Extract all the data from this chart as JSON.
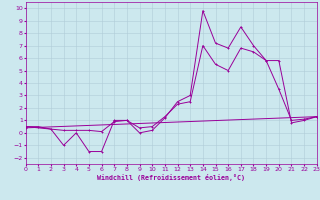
{
  "xlabel": "Windchill (Refroidissement éolien,°C)",
  "bg_color": "#cce8ee",
  "grid_color": "#b0cdd8",
  "line_color": "#990099",
  "xlim": [
    0,
    23
  ],
  "ylim": [
    -2.5,
    10.5
  ],
  "xticks": [
    0,
    1,
    2,
    3,
    4,
    5,
    6,
    7,
    8,
    9,
    10,
    11,
    12,
    13,
    14,
    15,
    16,
    17,
    18,
    19,
    20,
    21,
    22,
    23
  ],
  "yticks": [
    -2,
    -1,
    0,
    1,
    2,
    3,
    4,
    5,
    6,
    7,
    8,
    9,
    10
  ],
  "series1_x": [
    0,
    1,
    2,
    3,
    4,
    5,
    6,
    7,
    8,
    9,
    10,
    11,
    12,
    13,
    14,
    15,
    16,
    17,
    18,
    19,
    20,
    21,
    22,
    23
  ],
  "series1_y": [
    0.5,
    0.5,
    0.3,
    -1.0,
    0.0,
    -1.5,
    -1.5,
    1.0,
    1.0,
    0.0,
    0.2,
    1.2,
    2.5,
    3.0,
    9.8,
    7.2,
    6.8,
    8.5,
    7.0,
    5.8,
    3.5,
    1.0,
    1.1,
    1.3
  ],
  "series2_x": [
    0,
    3,
    4,
    5,
    6,
    7,
    8,
    9,
    10,
    11,
    12,
    13,
    14,
    15,
    16,
    17,
    18,
    19,
    20,
    21,
    22,
    23
  ],
  "series2_y": [
    0.5,
    0.2,
    0.2,
    0.2,
    0.1,
    0.9,
    1.0,
    0.4,
    0.5,
    1.3,
    2.3,
    2.5,
    7.0,
    5.5,
    5.0,
    6.8,
    6.5,
    5.8,
    5.8,
    0.8,
    1.0,
    1.3
  ],
  "series3_x": [
    0,
    23
  ],
  "series3_y": [
    0.4,
    1.3
  ]
}
